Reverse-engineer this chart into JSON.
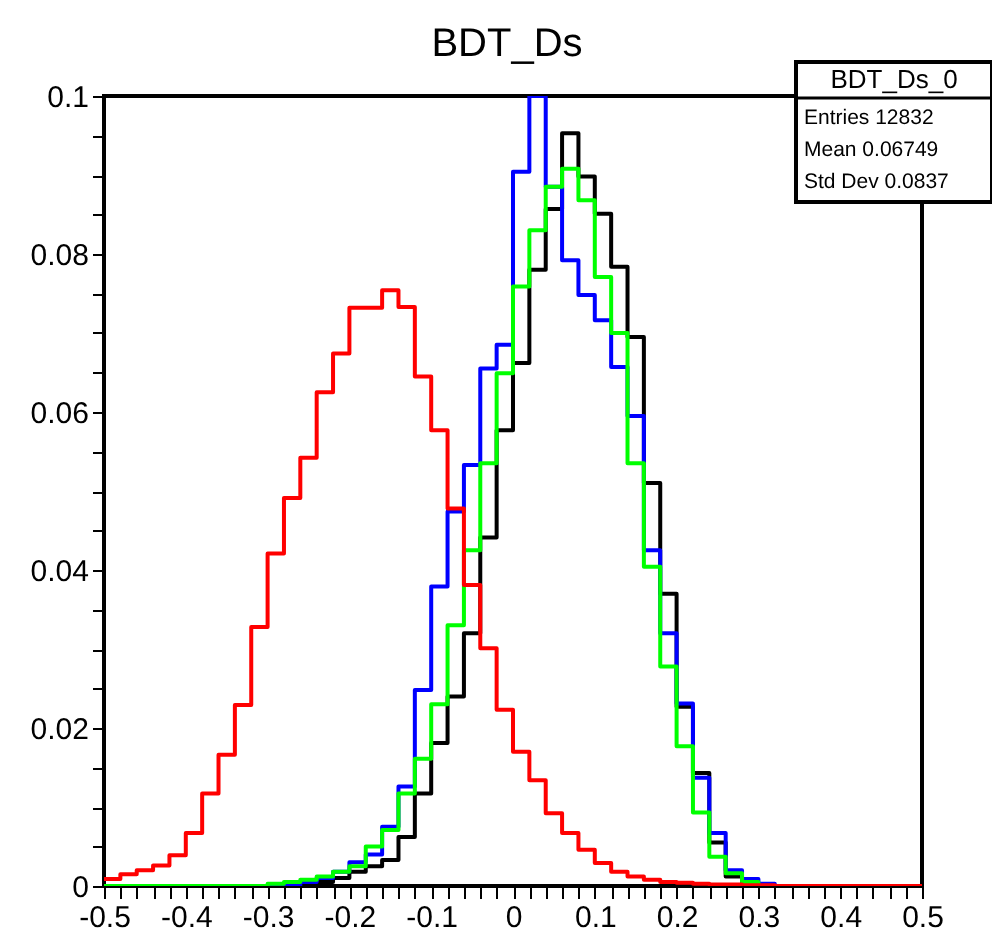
{
  "chart_data": {
    "type": "histogram",
    "title": "BDT_Ds",
    "bins": [
      -0.5,
      -0.48,
      -0.46,
      -0.44,
      -0.42,
      -0.4,
      -0.38,
      -0.36,
      -0.34,
      -0.32,
      -0.3,
      -0.28,
      -0.26,
      -0.24,
      -0.22,
      -0.2,
      -0.18,
      -0.16,
      -0.14,
      -0.12,
      -0.1,
      -0.08,
      -0.06,
      -0.04,
      -0.02,
      0,
      0.02,
      0.04,
      0.06,
      0.08,
      0.1,
      0.12,
      0.14,
      0.16,
      0.18,
      0.2,
      0.22,
      0.24,
      0.26,
      0.28,
      0.3,
      0.32,
      0.34,
      0.36,
      0.38,
      0.4,
      0.42,
      0.44,
      0.46,
      0.48,
      0.5
    ],
    "series": [
      {
        "color": "#000000",
        "values": [
          0,
          0,
          0,
          0,
          0,
          0,
          0,
          0,
          0,
          0,
          0,
          0,
          0.0003,
          0.0005,
          0.001,
          0.0018,
          0.0025,
          0.0033,
          0.0062,
          0.0117,
          0.0181,
          0.024,
          0.032,
          0.0441,
          0.0577,
          0.0662,
          0.078,
          0.0857,
          0.0953,
          0.0898,
          0.0851,
          0.0784,
          0.0695,
          0.051,
          0.037,
          0.0227,
          0.0143,
          0.0055,
          0.0012,
          0.0003,
          0,
          0,
          0,
          0,
          0,
          0,
          0,
          0,
          0,
          0
        ]
      },
      {
        "color": "#0000ff",
        "values": [
          0,
          0,
          0,
          0,
          0,
          0,
          0,
          0,
          0,
          0,
          0,
          0,
          0.0005,
          0.001,
          0.0018,
          0.003,
          0.004,
          0.0075,
          0.0126,
          0.0248,
          0.0379,
          0.0474,
          0.0533,
          0.0655,
          0.0685,
          0.0904,
          0.1,
          0.0885,
          0.0792,
          0.0748,
          0.0716,
          0.0657,
          0.0595,
          0.0425,
          0.032,
          0.0231,
          0.0137,
          0.0067,
          0.002,
          0.0009,
          0.0003,
          0,
          0,
          0,
          0,
          0,
          0,
          0,
          0,
          0
        ]
      },
      {
        "color": "#00ff00",
        "values": [
          0,
          0,
          0,
          0,
          0,
          0,
          0,
          0,
          0,
          0,
          0.0003,
          0.0005,
          0.0008,
          0.0012,
          0.0018,
          0.0025,
          0.005,
          0.0071,
          0.0117,
          0.0161,
          0.023,
          0.033,
          0.0425,
          0.0535,
          0.0649,
          0.0759,
          0.083,
          0.0885,
          0.0908,
          0.0868,
          0.0771,
          0.07,
          0.0535,
          0.0404,
          0.0278,
          0.0177,
          0.0093,
          0.0037,
          0.0016,
          0.0005,
          0,
          0,
          0,
          0,
          0,
          0,
          0,
          0,
          0,
          0
        ]
      },
      {
        "color": "#ff0000",
        "values": [
          0.0009,
          0.0015,
          0.002,
          0.0026,
          0.0039,
          0.0067,
          0.0117,
          0.0166,
          0.0229,
          0.0328,
          0.0421,
          0.0491,
          0.0542,
          0.0625,
          0.0674,
          0.0732,
          0.0732,
          0.0754,
          0.0733,
          0.0645,
          0.0577,
          0.0478,
          0.0381,
          0.0301,
          0.0223,
          0.017,
          0.0134,
          0.0092,
          0.0067,
          0.0046,
          0.0029,
          0.0018,
          0.0012,
          0.0008,
          0.0005,
          0.0004,
          0.0003,
          0.0002,
          0.0002,
          0.0001,
          0.0001,
          0,
          0,
          0,
          0,
          0,
          0,
          0,
          0,
          0
        ]
      }
    ],
    "xlim": [
      -0.5,
      0.5
    ],
    "xticks": [
      -0.5,
      {
        "value": -0.48,
        "label": null
      },
      {
        "value": -0.46,
        "label": null
      },
      {
        "value": -0.44,
        "label": null
      },
      {
        "value": -0.42,
        "label": null
      },
      -0.4,
      {
        "value": -0.38,
        "label": null
      },
      {
        "value": -0.36,
        "label": null
      },
      {
        "value": -0.34,
        "label": null
      },
      {
        "value": -0.32,
        "label": null
      },
      -0.3,
      {
        "value": -0.28,
        "label": null
      },
      {
        "value": -0.26,
        "label": null
      },
      {
        "value": -0.24,
        "label": null
      },
      {
        "value": -0.22,
        "label": null
      },
      -0.2,
      {
        "value": -0.18,
        "label": null
      },
      {
        "value": -0.16,
        "label": null
      },
      {
        "value": -0.14,
        "label": null
      },
      {
        "value": -0.12,
        "label": null
      },
      -0.1,
      {
        "value": -0.08,
        "label": null
      },
      {
        "value": -0.06,
        "label": null
      },
      {
        "value": -0.04,
        "label": null
      },
      {
        "value": -0.02,
        "label": null
      },
      0,
      {
        "value": 0.02,
        "label": null
      },
      {
        "value": 0.04,
        "label": null
      },
      {
        "value": 0.06,
        "label": null
      },
      {
        "value": 0.08,
        "label": null
      },
      0.1,
      {
        "value": 0.12,
        "label": null
      },
      {
        "value": 0.14,
        "label": null
      },
      {
        "value": 0.16,
        "label": null
      },
      {
        "value": 0.18,
        "label": null
      },
      0.2,
      {
        "value": 0.22,
        "label": null
      },
      {
        "value": 0.24,
        "label": null
      },
      {
        "value": 0.26,
        "label": null
      },
      {
        "value": 0.28,
        "label": null
      },
      0.3,
      {
        "value": 0.32,
        "label": null
      },
      {
        "value": 0.34,
        "label": null
      },
      {
        "value": 0.36,
        "label": null
      },
      {
        "value": 0.38,
        "label": null
      },
      0.4,
      {
        "value": 0.42,
        "label": null
      },
      {
        "value": 0.44,
        "label": null
      },
      {
        "value": 0.46,
        "label": null
      },
      {
        "value": 0.48,
        "label": null
      },
      0.5
    ],
    "ylim": [
      0,
      0.1
    ],
    "yticks": [
      0,
      {
        "value": 0.005,
        "label": null
      },
      {
        "value": 0.01,
        "label": null
      },
      {
        "value": 0.015,
        "label": null
      },
      0.02,
      {
        "value": 0.025,
        "label": null
      },
      {
        "value": 0.03,
        "label": null
      },
      {
        "value": 0.035,
        "label": null
      },
      0.04,
      {
        "value": 0.045,
        "label": null
      },
      {
        "value": 0.05,
        "label": null
      },
      {
        "value": 0.055,
        "label": null
      },
      0.06,
      {
        "value": 0.065,
        "label": null
      },
      {
        "value": 0.07,
        "label": null
      },
      {
        "value": 0.075,
        "label": null
      },
      0.08,
      {
        "value": 0.085,
        "label": null
      },
      {
        "value": 0.09,
        "label": null
      },
      {
        "value": 0.095,
        "label": null
      },
      0.1
    ],
    "grid": false,
    "annotations": [
      "BDT_Ds_0",
      "Entries   12832",
      "Mean   0.06749",
      "Std Dev  0.0837"
    ]
  }
}
